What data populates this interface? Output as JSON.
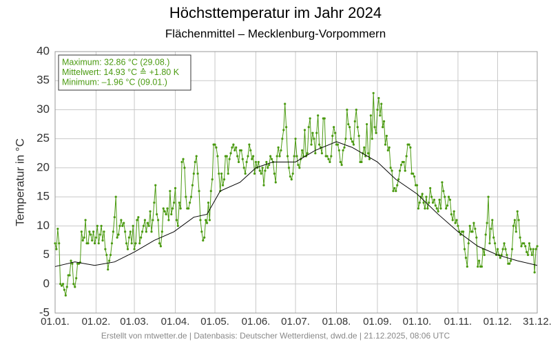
{
  "chart_data": {
    "type": "line",
    "title": "Höchsttemperatur im Jahr 2024",
    "subtitle": "Flächenmittel – Mecklenburg-Vorpommern",
    "ylabel": "Temperatur in °C",
    "footer": "Erstellt von mtwetter.de | Datenbasis: Deutscher Wetterdienst, dwd.de | 21.12.2025, 08:06 UTC",
    "annotations": [
      "Maximum: 32.86 °C (29.08.)",
      "Mittelwert: 14.93 °C ≙ +1.80 K",
      "Minimum:  –1.96 °C (09.01.)"
    ],
    "annotation_color": "#4a9a10",
    "grid": true,
    "xlim": [
      0,
      365
    ],
    "xticks": [
      {
        "value": 0,
        "label": "01.01."
      },
      {
        "value": 31,
        "label": "01.02."
      },
      {
        "value": 60,
        "label": "01.03."
      },
      {
        "value": 91,
        "label": "01.04."
      },
      {
        "value": 121,
        "label": "01.05."
      },
      {
        "value": 152,
        "label": "01.06."
      },
      {
        "value": 182,
        "label": "01.07."
      },
      {
        "value": 213,
        "label": "01.08."
      },
      {
        "value": 244,
        "label": "01.09."
      },
      {
        "value": 274,
        "label": "01.10."
      },
      {
        "value": 305,
        "label": "01.11."
      },
      {
        "value": 335,
        "label": "01.12."
      },
      {
        "value": 365,
        "label": "31.12."
      }
    ],
    "ylim": [
      -5,
      40
    ],
    "yticks": [
      -5,
      0,
      5,
      10,
      15,
      20,
      25,
      30,
      35,
      40
    ],
    "series": [
      {
        "color": "#4a9a10",
        "markers": true,
        "x": [
          0,
          1,
          2,
          3,
          4,
          5,
          6,
          7,
          8,
          9,
          10,
          11,
          12,
          13,
          14,
          15,
          16,
          17,
          18,
          19,
          20,
          21,
          22,
          23,
          24,
          25,
          26,
          27,
          28,
          29,
          30,
          31,
          32,
          33,
          34,
          35,
          36,
          37,
          38,
          39,
          40,
          41,
          42,
          43,
          44,
          45,
          46,
          47,
          48,
          49,
          50,
          51,
          52,
          53,
          54,
          55,
          56,
          57,
          58,
          59,
          60,
          61,
          62,
          63,
          64,
          65,
          66,
          67,
          68,
          69,
          70,
          71,
          72,
          73,
          74,
          75,
          76,
          77,
          78,
          79,
          80,
          81,
          82,
          83,
          84,
          85,
          86,
          87,
          88,
          89,
          90,
          91,
          92,
          93,
          94,
          95,
          96,
          97,
          98,
          99,
          100,
          101,
          102,
          103,
          104,
          105,
          106,
          107,
          108,
          109,
          110,
          111,
          112,
          113,
          114,
          115,
          116,
          117,
          118,
          119,
          120,
          121,
          122,
          123,
          124,
          125,
          126,
          127,
          128,
          129,
          130,
          131,
          132,
          133,
          134,
          135,
          136,
          137,
          138,
          139,
          140,
          141,
          142,
          143,
          144,
          145,
          146,
          147,
          148,
          149,
          150,
          151,
          152,
          153,
          154,
          155,
          156,
          157,
          158,
          159,
          160,
          161,
          162,
          163,
          164,
          165,
          166,
          167,
          168,
          169,
          170,
          171,
          172,
          173,
          174,
          175,
          176,
          177,
          178,
          179,
          180,
          181,
          182,
          183,
          184,
          185,
          186,
          187,
          188,
          189,
          190,
          191,
          192,
          193,
          194,
          195,
          196,
          197,
          198,
          199,
          200,
          201,
          202,
          203,
          204,
          205,
          206,
          207,
          208,
          209,
          210,
          211,
          212,
          213,
          214,
          215,
          216,
          217,
          218,
          219,
          220,
          221,
          222,
          223,
          224,
          225,
          226,
          227,
          228,
          229,
          230,
          231,
          232,
          233,
          234,
          235,
          236,
          237,
          238,
          239,
          240,
          241,
          242,
          243,
          244,
          245,
          246,
          247,
          248,
          249,
          250,
          251,
          252,
          253,
          254,
          255,
          256,
          257,
          258,
          259,
          260,
          261,
          262,
          263,
          264,
          265,
          266,
          267,
          268,
          269,
          270,
          271,
          272,
          273,
          274,
          275,
          276,
          277,
          278,
          279,
          280,
          281,
          282,
          283,
          284,
          285,
          286,
          287,
          288,
          289,
          290,
          291,
          292,
          293,
          294,
          295,
          296,
          297,
          298,
          299,
          300,
          301,
          302,
          303,
          304,
          305,
          306,
          307,
          308,
          309,
          310,
          311,
          312,
          313,
          314,
          315,
          316,
          317,
          318,
          319,
          320,
          321,
          322,
          323,
          324,
          325,
          326,
          327,
          328,
          329,
          330,
          331,
          332,
          333,
          334,
          335,
          336,
          337,
          338,
          339,
          340,
          341,
          342,
          343,
          344,
          345,
          346,
          347,
          348,
          349,
          350,
          351,
          352,
          353,
          354,
          355,
          356,
          357,
          358,
          359,
          360,
          361,
          362,
          363,
          364,
          365
        ],
        "values": [
          7,
          6,
          9.5,
          7,
          0,
          -0.3,
          0,
          -1,
          -1.96,
          -0.5,
          1.5,
          1.5,
          4,
          3.5,
          0,
          -0.5,
          1,
          3.5,
          3.5,
          3.7,
          9,
          7.5,
          8,
          11,
          7,
          7,
          9,
          8.5,
          7.5,
          9,
          7,
          8,
          10,
          7,
          8.5,
          10,
          7.5,
          9,
          6,
          5,
          2.5,
          4,
          5,
          7,
          9,
          11.5,
          15,
          8,
          8.5,
          10,
          11,
          10,
          10.5,
          9,
          7,
          6,
          8,
          9,
          7,
          10,
          6,
          7,
          11,
          11.5,
          7,
          8,
          9,
          10,
          11,
          9,
          10.5,
          10,
          12.5,
          9,
          11,
          14,
          17,
          12,
          11,
          7,
          6.5,
          9,
          13,
          12.5,
          12,
          13,
          11,
          16,
          12,
          13,
          14,
          16.5,
          11,
          10,
          14,
          13,
          21,
          21.5,
          20,
          15,
          13,
          13,
          14,
          15,
          17,
          19,
          21,
          22,
          19,
          16,
          11,
          9,
          7.5,
          8,
          11,
          10.5,
          14,
          11,
          16,
          18,
          24,
          24,
          23.5,
          22,
          19,
          16,
          19,
          17,
          18,
          22,
          22,
          19,
          21.5,
          22.5,
          23.5,
          24,
          23,
          23.5,
          22,
          21,
          23,
          23,
          21.5,
          20,
          19,
          21,
          22,
          24,
          23,
          21.5,
          22,
          19,
          21,
          20,
          21,
          19.5,
          19,
          20,
          17,
          19.5,
          21,
          20,
          20.5,
          22,
          21.5,
          21,
          19,
          17.5,
          22,
          23.5,
          22,
          23,
          25,
          26.5,
          31,
          27,
          22,
          20,
          18.5,
          18,
          19,
          22,
          25,
          22,
          20.5,
          20,
          21.5,
          23,
          22,
          26.5,
          22,
          22.5,
          27,
          28.5,
          24,
          26,
          25,
          22.5,
          26,
          29,
          24,
          23.5,
          22.5,
          28.5,
          28.5,
          22,
          22,
          21.5,
          21,
          22,
          25.5,
          27,
          26,
          24,
          24,
          23,
          21,
          20.5,
          23,
          23.5,
          25,
          30,
          27.5,
          27,
          25,
          24.5,
          24,
          28,
          30,
          27,
          25.5,
          21,
          21,
          22.5,
          23.5,
          22,
          27.5,
          22.5,
          21.5,
          29,
          25,
          32.86,
          27,
          26,
          30,
          32,
          29,
          31,
          27,
          28,
          24,
          25.5,
          23,
          23.5,
          20,
          19.5,
          16,
          16.5,
          16,
          17,
          18,
          19.5,
          20.5,
          21,
          21,
          19.5,
          22,
          24,
          24,
          23.5,
          19,
          19,
          18.5,
          17,
          17,
          13,
          14,
          15,
          15.5,
          14,
          13,
          15,
          13,
          14,
          16.5,
          15,
          14,
          14.5,
          13.5,
          13,
          12.5,
          14.5,
          13,
          17.5,
          16,
          15,
          13,
          13.5,
          15,
          14.5,
          12,
          11,
          12.5,
          10.5,
          11,
          10,
          9,
          8.5,
          9,
          9,
          6,
          4.5,
          3,
          7,
          10,
          9,
          9,
          10.5,
          9.5,
          8,
          3,
          4,
          3,
          3,
          6,
          5,
          8.5,
          10.5,
          15,
          7,
          9.5,
          11,
          8,
          7,
          5,
          6,
          5,
          4.5,
          5,
          6,
          7,
          6,
          5,
          3.5,
          3.5,
          4,
          6,
          10,
          11,
          9,
          12.5,
          11,
          8,
          6.5,
          7,
          7,
          6.5,
          5.5,
          5,
          7,
          6,
          5,
          6,
          2,
          6,
          6.5
        ]
      },
      {
        "color": "#000000",
        "markers": false,
        "x": [
          0,
          15,
          30,
          45,
          60,
          75,
          90,
          105,
          115,
          125,
          140,
          152,
          165,
          182,
          197,
          213,
          225,
          244,
          258,
          274,
          290,
          305,
          320,
          335,
          350,
          365
        ],
        "values": [
          3,
          3.8,
          3.2,
          3.8,
          5.5,
          7.5,
          9,
          11.5,
          12,
          16,
          17.5,
          20,
          21,
          21,
          23,
          24.5,
          23.5,
          21,
          18,
          15.5,
          12,
          9,
          6.5,
          5,
          4,
          3.2
        ]
      }
    ]
  }
}
